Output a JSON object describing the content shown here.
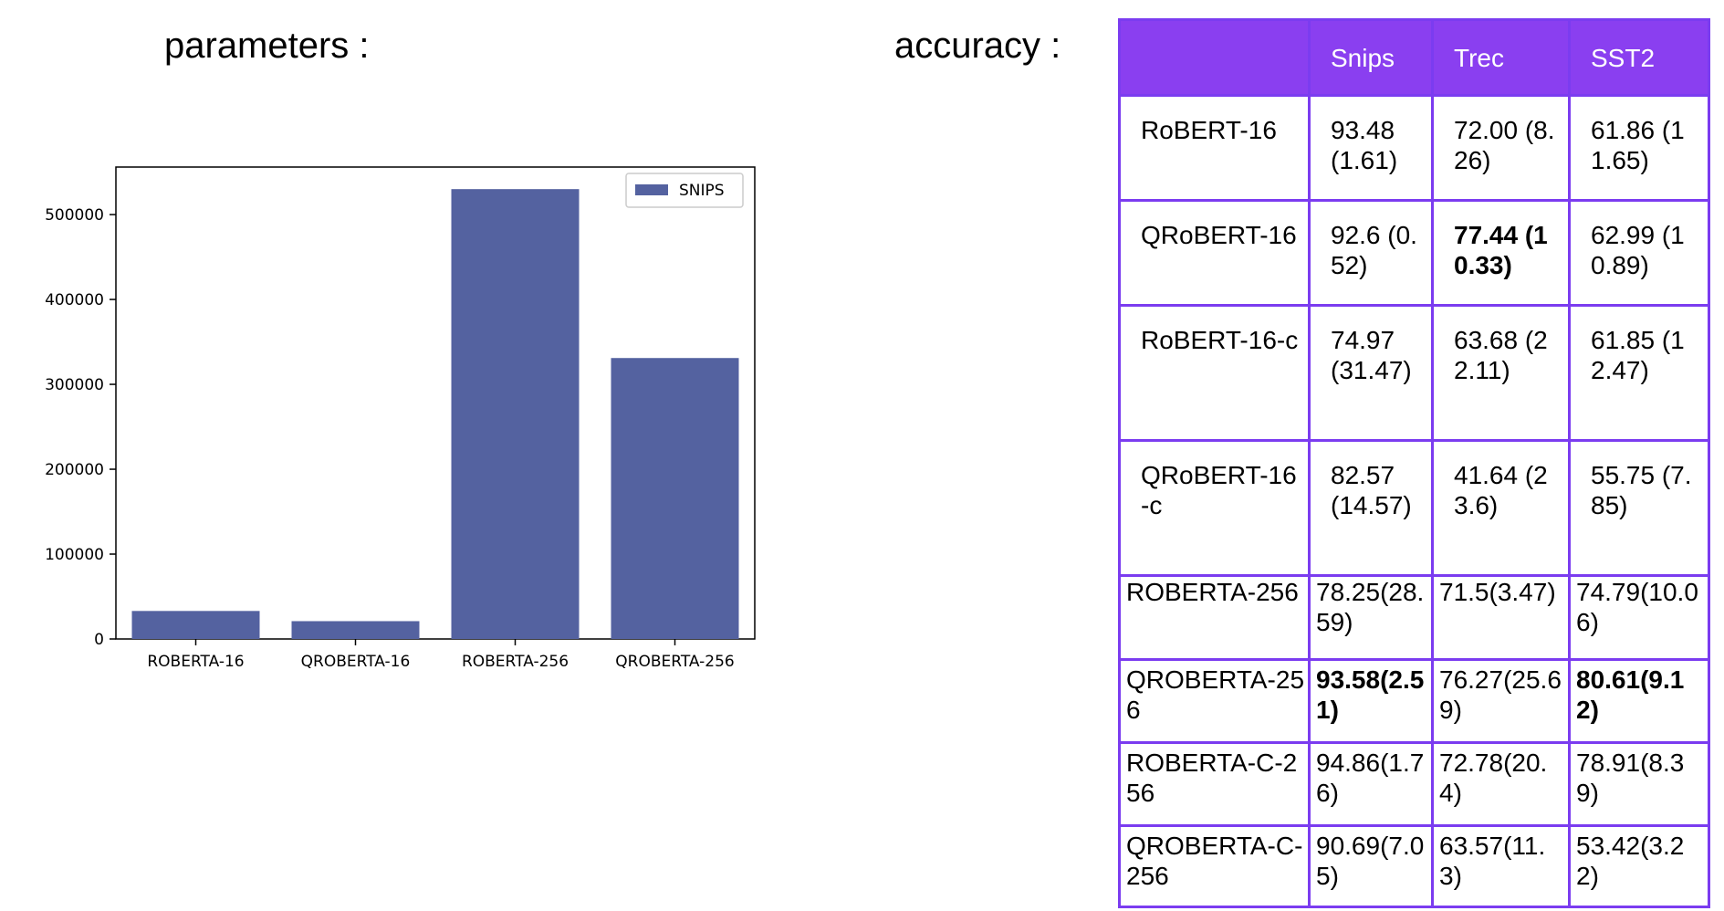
{
  "headings": {
    "parameters": "parameters :",
    "accuracy": "accuracy :"
  },
  "chart_data": {
    "type": "bar",
    "categories": [
      "ROBERTA-16",
      "QROBERTA-16",
      "ROBERTA-256",
      "QROBERTA-256"
    ],
    "series": [
      {
        "name": "SNIPS",
        "values": [
          33000,
          21000,
          530000,
          331000
        ],
        "color": "#5462a0"
      }
    ],
    "yticks": [
      0,
      100000,
      200000,
      300000,
      400000,
      500000
    ],
    "ylim": [
      0,
      556000
    ],
    "legend": "top-right",
    "grid": false
  },
  "table": {
    "columns": [
      "",
      "Snips",
      "Trec",
      "SST2"
    ],
    "rows": [
      {
        "name": "RoBERT-16",
        "cells": [
          {
            "text": "93.48 (1.61)"
          },
          {
            "text": "72.00 (8.26)"
          },
          {
            "text": "61.86 (11.65)"
          }
        ]
      },
      {
        "name": "QRoBERT-16",
        "cells": [
          {
            "text": "92.6 (0.52)"
          },
          {
            "text": "77.44 (10.33)",
            "highlight": true
          },
          {
            "text": "62.99 (10.89)"
          }
        ]
      },
      {
        "name": "RoBERT-16-c",
        "cells": [
          {
            "text": "74.97 (31.47)"
          },
          {
            "text": "63.68 (22.11)"
          },
          {
            "text": "61.85 (12.47)"
          }
        ]
      },
      {
        "name": "QRoBERT-16-c",
        "cells": [
          {
            "text": "82.57 (14.57)"
          },
          {
            "text": "41.64 (23.6)"
          },
          {
            "text": "55.75 (7.85)"
          }
        ]
      },
      {
        "name": "ROBERTA-256",
        "cells": [
          {
            "text": "78.25(28.59)"
          },
          {
            "text": "71.5(3.47)"
          },
          {
            "text": "74.79(10.06)"
          }
        ]
      },
      {
        "name": "QROBERTA-256",
        "cells": [
          {
            "text": "93.58(2.51)",
            "highlight": true
          },
          {
            "text": "76.27(25.69)"
          },
          {
            "text": "80.61(9.12)",
            "highlight": true
          }
        ]
      },
      {
        "name": "ROBERTA-C-256",
        "cells": [
          {
            "text": "94.86(1.76)"
          },
          {
            "text": "72.78(20.4)"
          },
          {
            "text": "78.91(8.39)"
          }
        ]
      },
      {
        "name": "QROBERTA-C-256",
        "cells": [
          {
            "text": "90.69(7.05)"
          },
          {
            "text": "63.57(11.3)"
          },
          {
            "text": "53.42(3.22)"
          }
        ]
      }
    ]
  }
}
